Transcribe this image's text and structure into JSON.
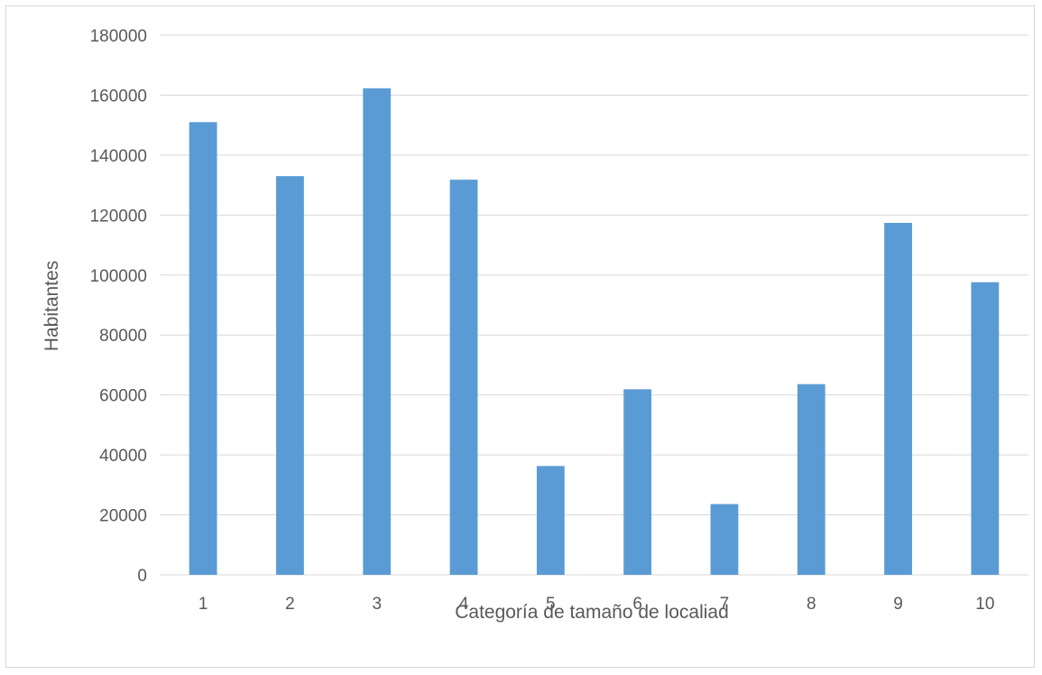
{
  "chart_data": {
    "type": "bar",
    "title": "",
    "xlabel": "Categoría de tamaño de localiad",
    "ylabel": "Habitantes",
    "categories": [
      "1",
      "2",
      "3",
      "4",
      "5",
      "6",
      "7",
      "8",
      "9",
      "10"
    ],
    "values": [
      151000,
      133000,
      162300,
      131800,
      36300,
      61900,
      23600,
      63600,
      117400,
      97600
    ],
    "ylim": [
      0,
      180000
    ],
    "yticks": [
      "0",
      "20000",
      "40000",
      "60000",
      "80000",
      "100000",
      "120000",
      "140000",
      "160000",
      "180000"
    ],
    "grid": true,
    "legend": "none",
    "bar_color": "#5b9bd5"
  }
}
